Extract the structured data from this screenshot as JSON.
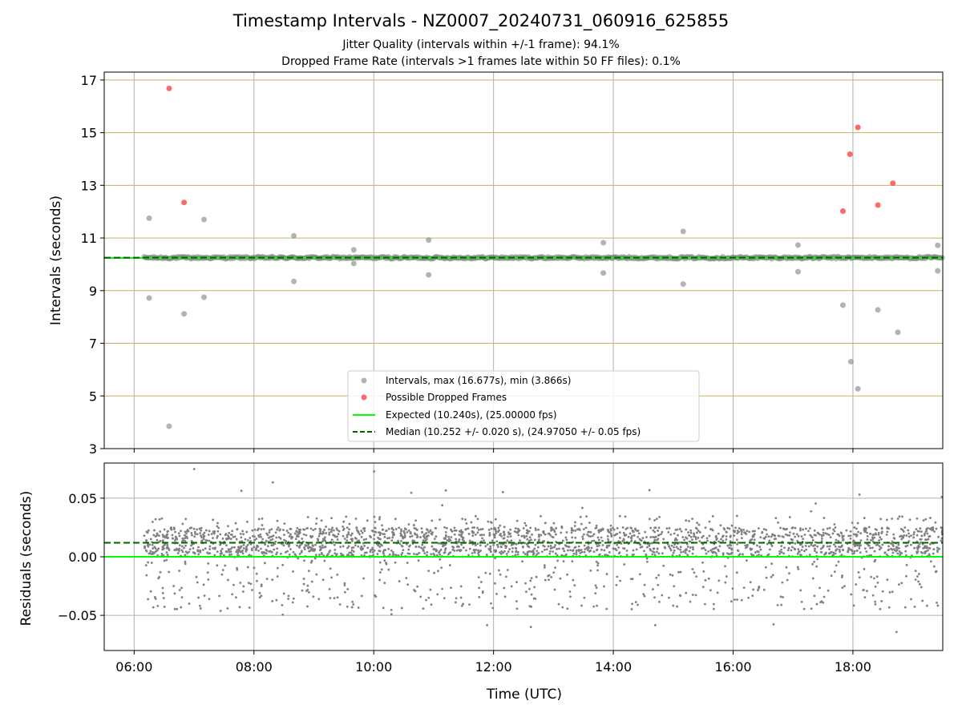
{
  "figure": {
    "title": "Timestamp Intervals - NZ0007_20240731_060916_625855",
    "subtitle_1": "Jitter Quality (intervals within +/-1 frame): 94.1%",
    "subtitle_2": "Dropped Frame Rate (intervals >1 frames late within 50 FF files): 0.1%",
    "xlabel": "Time (UTC)"
  },
  "colors": {
    "intervals": "#808080",
    "dropped": "#ff4444",
    "expected": "#00ff00",
    "median": "#006400",
    "hgrid_top": "#c8b060",
    "grid": "#b0b0b0"
  },
  "chart_data": [
    {
      "type": "scatter",
      "panel": "top",
      "xlabel": "",
      "ylabel": "Intervals (seconds)",
      "xlim": [
        "05:30",
        "19:30"
      ],
      "ylim": [
        3,
        17.3
      ],
      "xticks": [
        "06:00",
        "08:00",
        "10:00",
        "12:00",
        "14:00",
        "16:00",
        "18:00"
      ],
      "yticks": [
        3,
        5,
        7,
        9,
        11,
        13,
        15,
        17
      ],
      "grid": true,
      "legend_position": "bottom-center",
      "series": [
        {
          "name": "Intervals, max (16.677s), min (3.866s)",
          "marker": "circle",
          "band": {
            "x_start": "06:10",
            "x_end": "19:30",
            "y_center": 10.25,
            "y_spread": 0.04
          },
          "x": [
            "06:15",
            "06:15",
            "06:35",
            "06:50",
            "07:10",
            "07:10",
            "08:40",
            "08:40",
            "09:40",
            "09:40",
            "10:55",
            "10:55",
            "13:50",
            "13:50",
            "15:10",
            "15:10",
            "17:05",
            "17:05",
            "17:50",
            "17:58",
            "18:05",
            "18:25",
            "18:45",
            "19:25",
            "19:25"
          ],
          "y": [
            11.75,
            8.72,
            3.85,
            8.12,
            11.7,
            8.75,
            11.08,
            9.35,
            10.55,
            10.03,
            10.92,
            9.6,
            10.82,
            9.67,
            11.25,
            9.25,
            10.73,
            9.72,
            8.45,
            6.3,
            5.27,
            8.27,
            7.42,
            10.72,
            9.75
          ]
        },
        {
          "name": "Possible Dropped Frames",
          "marker": "circle",
          "x": [
            "06:35",
            "06:50",
            "17:50",
            "17:57",
            "18:05",
            "18:25",
            "18:40"
          ],
          "y": [
            16.68,
            12.35,
            12.02,
            14.18,
            15.2,
            12.25,
            13.08
          ]
        },
        {
          "name": "Expected (10.240s), (25.00000 fps)",
          "line": "solid",
          "y": 10.24
        },
        {
          "name": "Median (10.252 +/- 0.020 s), (24.97050 +/- 0.05 fps)",
          "line": "dashed",
          "y": 10.252
        }
      ]
    },
    {
      "type": "scatter",
      "panel": "bottom",
      "xlabel": "Time (UTC)",
      "ylabel": "Residuals (seconds)",
      "xlim": [
        "05:30",
        "19:30"
      ],
      "ylim": [
        -0.08,
        0.08
      ],
      "xticks": [
        "06:00",
        "08:00",
        "10:00",
        "12:00",
        "14:00",
        "16:00",
        "18:00"
      ],
      "yticks": [
        -0.05,
        0.0,
        0.05
      ],
      "ytick_labels": [
        "−0.05",
        "0.00",
        "0.05"
      ],
      "grid": true,
      "series": [
        {
          "name": "",
          "marker": "dot",
          "x_start": "06:10",
          "x_end": "19:30",
          "dense_range": [
            0.0,
            0.025
          ],
          "sparse_range": [
            -0.065,
            0.075
          ]
        },
        {
          "name": "",
          "line": "solid",
          "y": 0.0
        },
        {
          "name": "",
          "line": "dashed",
          "y": 0.012
        }
      ]
    }
  ]
}
